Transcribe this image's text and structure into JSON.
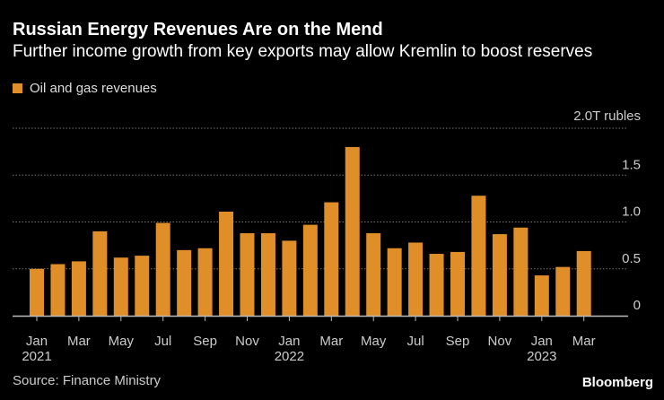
{
  "chart_data": {
    "type": "bar",
    "title": "Russian Energy Revenues Are on the Mend",
    "subtitle": "Further income growth from key exports may allow Kremlin to boost reserves",
    "unit_label": "2.0T rubles",
    "legend": [
      "Oil and gas revenues"
    ],
    "color": "#e08e28",
    "grid": true,
    "ylim": [
      0,
      2.0
    ],
    "yticks": [
      "0",
      "0.5",
      "1.0",
      "1.5"
    ],
    "categories": [
      "Jan 2021",
      "Feb 2021",
      "Mar 2021",
      "Apr 2021",
      "May 2021",
      "Jun 2021",
      "Jul 2021",
      "Aug 2021",
      "Sep 2021",
      "Oct 2021",
      "Nov 2021",
      "Dec 2021",
      "Jan 2022",
      "Feb 2022",
      "Mar 2022",
      "Apr 2022",
      "May 2022",
      "Jun 2022",
      "Jul 2022",
      "Aug 2022",
      "Sep 2022",
      "Oct 2022",
      "Nov 2022",
      "Dec 2022",
      "Jan 2023",
      "Feb 2023",
      "Mar 2023"
    ],
    "series": [
      {
        "name": "Oil and gas revenues",
        "values": [
          0.5,
          0.55,
          0.58,
          0.9,
          0.62,
          0.64,
          0.99,
          0.7,
          0.72,
          1.11,
          0.88,
          0.88,
          0.8,
          0.97,
          1.21,
          1.8,
          0.88,
          0.72,
          0.78,
          0.66,
          0.68,
          1.28,
          0.87,
          0.94,
          0.43,
          0.52,
          0.69
        ]
      }
    ],
    "xtick_labels": [
      {
        "month": "Jan",
        "year": "2021"
      },
      {
        "month": "Mar",
        "year": ""
      },
      {
        "month": "May",
        "year": ""
      },
      {
        "month": "Jul",
        "year": ""
      },
      {
        "month": "Sep",
        "year": ""
      },
      {
        "month": "Nov",
        "year": ""
      },
      {
        "month": "Jan",
        "year": "2022"
      },
      {
        "month": "Mar",
        "year": ""
      },
      {
        "month": "May",
        "year": ""
      },
      {
        "month": "Jul",
        "year": ""
      },
      {
        "month": "Sep",
        "year": ""
      },
      {
        "month": "Nov",
        "year": ""
      },
      {
        "month": "Jan",
        "year": "2023"
      },
      {
        "month": "Mar",
        "year": ""
      }
    ]
  },
  "source": "Source: Finance Ministry",
  "logo": "Bloomberg"
}
